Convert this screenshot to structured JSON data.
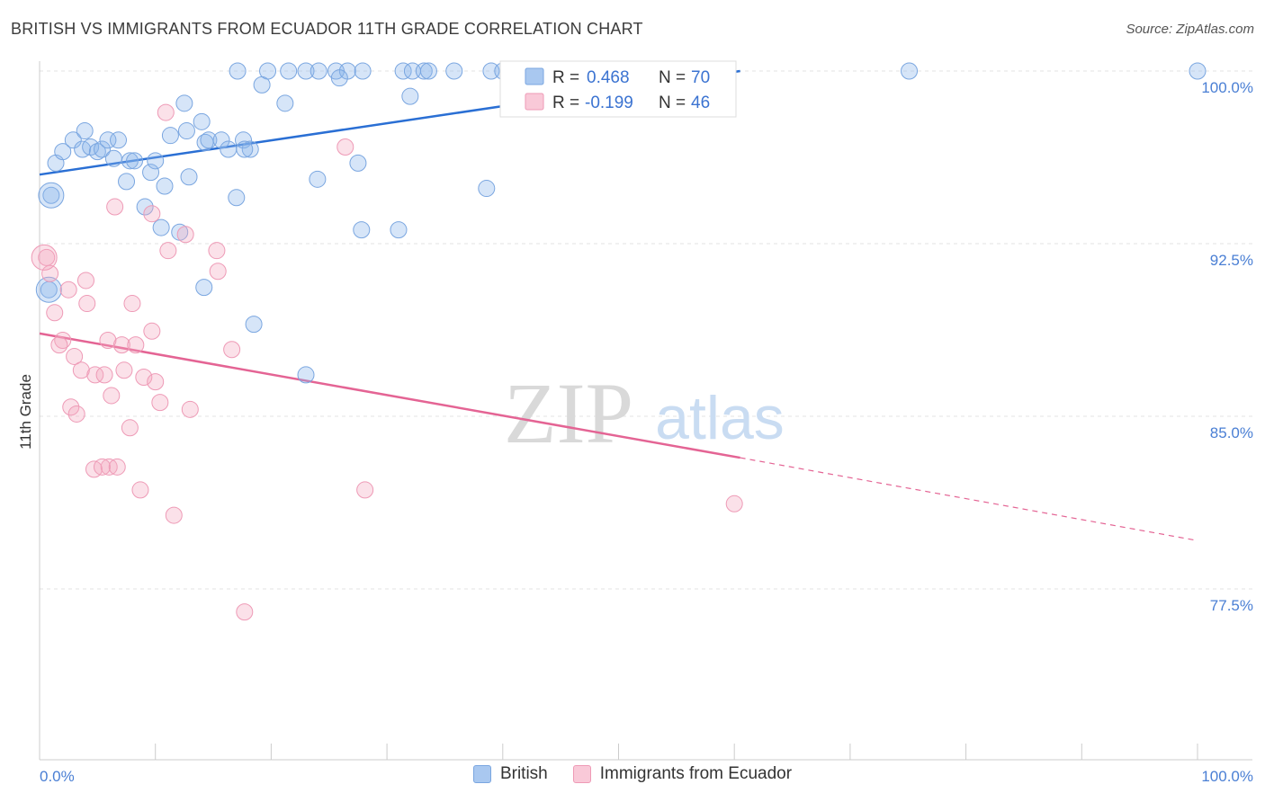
{
  "header": {
    "title": "BRITISH VS IMMIGRANTS FROM ECUADOR 11TH GRADE CORRELATION CHART",
    "source": "Source: ZipAtlas.com"
  },
  "watermark": {
    "zip": "ZIP",
    "atlas": "atlas"
  },
  "chart_data": {
    "type": "scatter",
    "title": "BRITISH VS IMMIGRANTS FROM ECUADOR 11TH GRADE CORRELATION CHART",
    "xlabel": "",
    "ylabel": "11th Grade",
    "xlim": [
      0,
      100
    ],
    "ylim": [
      70.0,
      101.8
    ],
    "x_tick_labels": [
      "0.0%",
      "100.0%"
    ],
    "y_ticks": [
      {
        "value": 100.0,
        "label": "100.0%"
      },
      {
        "value": 92.5,
        "label": "92.5%"
      },
      {
        "value": 85.0,
        "label": "85.0%"
      },
      {
        "value": 77.5,
        "label": "77.5%"
      }
    ],
    "grid": true,
    "legend_placement": "top-center",
    "series": [
      {
        "name": "British",
        "color": "#8ab4ea",
        "line_color": "#2a6fd4",
        "R": "0.468",
        "N": "70",
        "trend": {
          "x0": 0,
          "y0": 95.5,
          "x1": 60.5,
          "y1": 100.0
        },
        "points": [
          [
            17.1,
            100
          ],
          [
            19.7,
            100
          ],
          [
            21.5,
            100
          ],
          [
            23.0,
            100
          ],
          [
            24.1,
            100
          ],
          [
            25.6,
            100
          ],
          [
            26.6,
            100
          ],
          [
            27.9,
            100
          ],
          [
            31.4,
            100
          ],
          [
            32.2,
            100
          ],
          [
            33.2,
            100
          ],
          [
            33.6,
            100
          ],
          [
            35.8,
            100
          ],
          [
            39.0,
            100
          ],
          [
            40.0,
            100
          ],
          [
            42.3,
            100
          ],
          [
            45.1,
            100
          ],
          [
            47.0,
            100
          ],
          [
            49.7,
            100
          ],
          [
            50.2,
            100
          ],
          [
            51.1,
            100
          ],
          [
            51.3,
            100
          ],
          [
            75.1,
            100
          ],
          [
            100.0,
            100
          ],
          [
            19.2,
            99.4
          ],
          [
            25.9,
            99.7
          ],
          [
            12.5,
            98.6
          ],
          [
            21.2,
            98.6
          ],
          [
            32.0,
            98.9
          ],
          [
            1.4,
            96.0
          ],
          [
            2.0,
            96.5
          ],
          [
            2.9,
            97.0
          ],
          [
            3.7,
            96.6
          ],
          [
            3.9,
            97.4
          ],
          [
            4.4,
            96.7
          ],
          [
            5.0,
            96.5
          ],
          [
            5.4,
            96.6
          ],
          [
            5.9,
            97.0
          ],
          [
            6.4,
            96.2
          ],
          [
            6.8,
            97.0
          ],
          [
            7.8,
            96.1
          ],
          [
            8.2,
            96.1
          ],
          [
            9.6,
            95.6
          ],
          [
            10.0,
            96.1
          ],
          [
            11.3,
            97.2
          ],
          [
            12.7,
            97.4
          ],
          [
            14.0,
            97.8
          ],
          [
            14.3,
            96.9
          ],
          [
            14.6,
            97.0
          ],
          [
            15.7,
            97.0
          ],
          [
            16.3,
            96.6
          ],
          [
            17.6,
            97.0
          ],
          [
            18.2,
            96.6
          ],
          [
            17.7,
            96.6
          ],
          [
            27.5,
            96.0
          ],
          [
            7.5,
            95.2
          ],
          [
            10.8,
            95.0
          ],
          [
            12.9,
            95.4
          ],
          [
            24.0,
            95.3
          ],
          [
            38.6,
            94.9
          ],
          [
            17.0,
            94.5
          ],
          [
            9.1,
            94.1
          ],
          [
            10.5,
            93.2
          ],
          [
            12.1,
            93.0
          ],
          [
            27.8,
            93.1
          ],
          [
            31.0,
            93.1
          ],
          [
            1.0,
            94.6
          ],
          [
            0.8,
            90.5
          ],
          [
            14.2,
            90.6
          ],
          [
            18.5,
            89.0
          ],
          [
            23.0,
            86.8
          ]
        ],
        "sizes_large": [
          [
            1.0,
            94.6
          ],
          [
            0.8,
            90.5
          ]
        ]
      },
      {
        "name": "Immigrants from Ecuador",
        "color": "#f4a8bf",
        "line_color": "#e46494",
        "R": "-0.199",
        "N": "46",
        "trend": {
          "x0": 0,
          "y0": 88.6,
          "x1": 60.5,
          "y1": 83.2
        },
        "trend_dash": {
          "x0": 60.5,
          "y0": 83.2,
          "x1": 100,
          "y1": 79.6
        },
        "points": [
          [
            10.9,
            98.2
          ],
          [
            26.4,
            96.7
          ],
          [
            6.5,
            94.1
          ],
          [
            9.7,
            93.8
          ],
          [
            12.6,
            92.9
          ],
          [
            11.1,
            92.2
          ],
          [
            15.3,
            92.2
          ],
          [
            15.4,
            91.3
          ],
          [
            0.6,
            91.9
          ],
          [
            0.9,
            91.2
          ],
          [
            2.5,
            90.5
          ],
          [
            4.0,
            90.9
          ],
          [
            4.1,
            89.9
          ],
          [
            8.0,
            89.9
          ],
          [
            1.3,
            89.5
          ],
          [
            9.7,
            88.7
          ],
          [
            2.0,
            88.3
          ],
          [
            1.7,
            88.1
          ],
          [
            5.9,
            88.3
          ],
          [
            7.1,
            88.1
          ],
          [
            8.3,
            88.1
          ],
          [
            16.6,
            87.9
          ],
          [
            3.0,
            87.6
          ],
          [
            3.6,
            87.0
          ],
          [
            7.3,
            87.0
          ],
          [
            4.8,
            86.8
          ],
          [
            5.6,
            86.8
          ],
          [
            9.0,
            86.7
          ],
          [
            10.0,
            86.5
          ],
          [
            6.2,
            85.9
          ],
          [
            2.7,
            85.4
          ],
          [
            3.2,
            85.1
          ],
          [
            10.4,
            85.6
          ],
          [
            13.0,
            85.3
          ],
          [
            7.8,
            84.5
          ],
          [
            4.7,
            82.7
          ],
          [
            6.0,
            82.8
          ],
          [
            5.4,
            82.8
          ],
          [
            6.7,
            82.8
          ],
          [
            8.7,
            81.8
          ],
          [
            28.1,
            81.8
          ],
          [
            11.6,
            80.7
          ],
          [
            60.0,
            81.2
          ],
          [
            17.7,
            76.5
          ]
        ],
        "sizes_large": [
          [
            0.4,
            91.9
          ]
        ]
      }
    ]
  },
  "legend": {
    "items": [
      {
        "r_label": "R = ",
        "r_value": "0.468",
        "n_label": "N = ",
        "n_value": "70"
      },
      {
        "r_label": "R = ",
        "r_value": "-0.199",
        "n_label": "N = ",
        "n_value": "46"
      }
    ]
  },
  "bottom_legend": {
    "items": [
      {
        "label": "British",
        "color": "#a9c8f0",
        "border": "#7aa6e0"
      },
      {
        "label": "Immigrants from Ecuador",
        "color": "#f9c9d8",
        "border": "#ee9ab6"
      }
    ]
  }
}
